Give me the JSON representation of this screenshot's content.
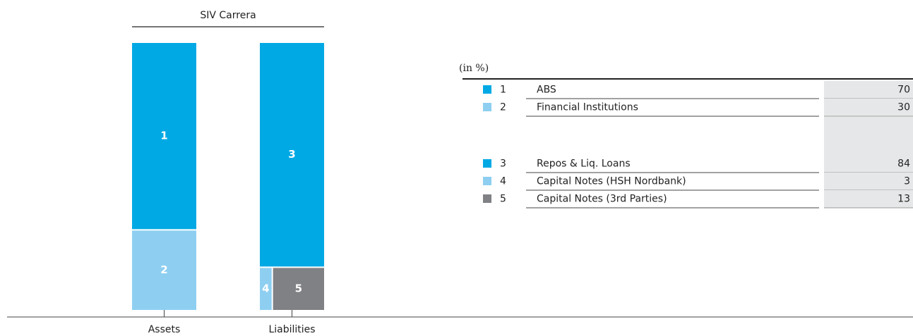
{
  "chart_data": {
    "type": "stacked-bar",
    "title": "SIV Carrera",
    "unit": "(in %)",
    "bars": [
      {
        "label": "Assets",
        "segments": [
          {
            "key": "1",
            "name": "ABS",
            "value": 70,
            "color": "#00a9e4"
          },
          {
            "key": "2",
            "name": "Financial Institutions",
            "value": 30,
            "color": "#8ecff1"
          }
        ]
      },
      {
        "label": "Liabilities",
        "segments": [
          {
            "key": "3",
            "name": "Repos & Liq. Loans",
            "value": 84,
            "color": "#00a9e4"
          },
          {
            "key": "4",
            "name": "Capital Notes (HSH Nordbank)",
            "value": 3,
            "color": "#8ecff1"
          },
          {
            "key": "5",
            "name": "Capital Notes (3rd Parties)",
            "value": 13,
            "color": "#808184"
          }
        ]
      }
    ]
  }
}
